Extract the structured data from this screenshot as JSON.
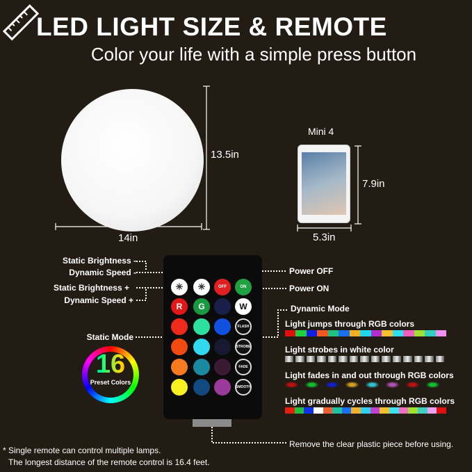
{
  "header": {
    "title": "LED LIGHT SIZE & REMOTE",
    "subtitle": "Color your life with a simple press button",
    "icon": "ruler-icon"
  },
  "ball": {
    "height": "13.5in",
    "width": "14in"
  },
  "tablet": {
    "name": "Mini 4",
    "height": "7.9in",
    "width": "5.3in"
  },
  "remote": {
    "left_labels": [
      "Static Brightness -",
      "Dynamic Speed -",
      "Static Brightness +",
      "Dynamic Speed +"
    ],
    "static_mode": "Static Mode",
    "power_off": "Power OFF",
    "power_on": "Power ON",
    "buttons": [
      [
        "brightness-up",
        "",
        "#ffffff"
      ],
      [
        "brightness-down",
        "",
        "#ffffff"
      ],
      [
        "power-off",
        "OFF",
        "#e02020"
      ],
      [
        "power-on",
        "ON",
        "#20a040"
      ],
      [
        "red",
        "R",
        "#e01818"
      ],
      [
        "green",
        "G",
        "#1a9a40"
      ],
      [
        "blue",
        "",
        "#1a1f4a"
      ],
      [
        "white",
        "W",
        "#ffffff"
      ],
      [
        "color",
        "",
        "#f02a1a"
      ],
      [
        "color",
        "",
        "#2ee0a0"
      ],
      [
        "color",
        "",
        "#1050e0"
      ],
      [
        "flash",
        "FLASH",
        ""
      ],
      [
        "color",
        "",
        "#f04a10"
      ],
      [
        "color",
        "",
        "#30d8f0"
      ],
      [
        "color",
        "",
        "#181830"
      ],
      [
        "strobe",
        "STROBE",
        ""
      ],
      [
        "color",
        "",
        "#f77a20"
      ],
      [
        "color",
        "",
        "#1a8aa0"
      ],
      [
        "color",
        "",
        "#3a1a30"
      ],
      [
        "fade",
        "FADE",
        ""
      ],
      [
        "color",
        "",
        "#f8f020"
      ],
      [
        "color",
        "",
        "#104a80"
      ],
      [
        "color",
        "",
        "#9a3a9a"
      ],
      [
        "smooth",
        "SMOOTH",
        ""
      ]
    ]
  },
  "preset": {
    "count": "16",
    "caption": "Preset Colors"
  },
  "dynamic": {
    "title": "Dynamic Mode",
    "modes": [
      {
        "desc": "Light jumps through RGB colors",
        "colors": [
          "#e01010",
          "#20d040",
          "#1020e0",
          "#f05a20",
          "#20c080",
          "#1a70f0",
          "#f8b020",
          "#20d8f0",
          "#b030d0",
          "#f8c030",
          "#30e0f0",
          "#f060c0",
          "#a0e030",
          "#30d0c0",
          "#f090f0"
        ]
      },
      {
        "desc": "Light strobes in white color",
        "colors": [
          "#cccccc",
          "#cccccc",
          "#cccccc",
          "#cccccc",
          "#cccccc",
          "#cccccc",
          "#cccccc",
          "#cccccc",
          "#cccccc",
          "#cccccc",
          "#cccccc",
          "#cccccc",
          "#cccccc",
          "#cccccc",
          "#cccccc"
        ]
      },
      {
        "desc": "Light fades in and out through RGB colors",
        "colors": [
          "#c01010",
          "#10c030",
          "#1020d0",
          "#d0a020",
          "#30c0d0",
          "#b050b0",
          "#c01010",
          "#10c030"
        ]
      },
      {
        "desc": "Light  gradually cycles through RGB colors",
        "colors": [
          "#e02010",
          "#20c040",
          "#1030f0",
          "#ffffff",
          "#f06030",
          "#20c0a0",
          "#1a70f0",
          "#f0b030",
          "#30d0f0",
          "#c040d0",
          "#f0c030",
          "#40e0f0",
          "#f070c0",
          "#a0e030",
          "#40d0c0",
          "#f0a0f0",
          "#e01010"
        ]
      }
    ]
  },
  "notes": {
    "remove": "Remove the clear plastic piece before using.",
    "line1": "* Single remote can control multiple lamps.",
    "line2": "The longest distance of the remote control is 16.4 feet."
  }
}
